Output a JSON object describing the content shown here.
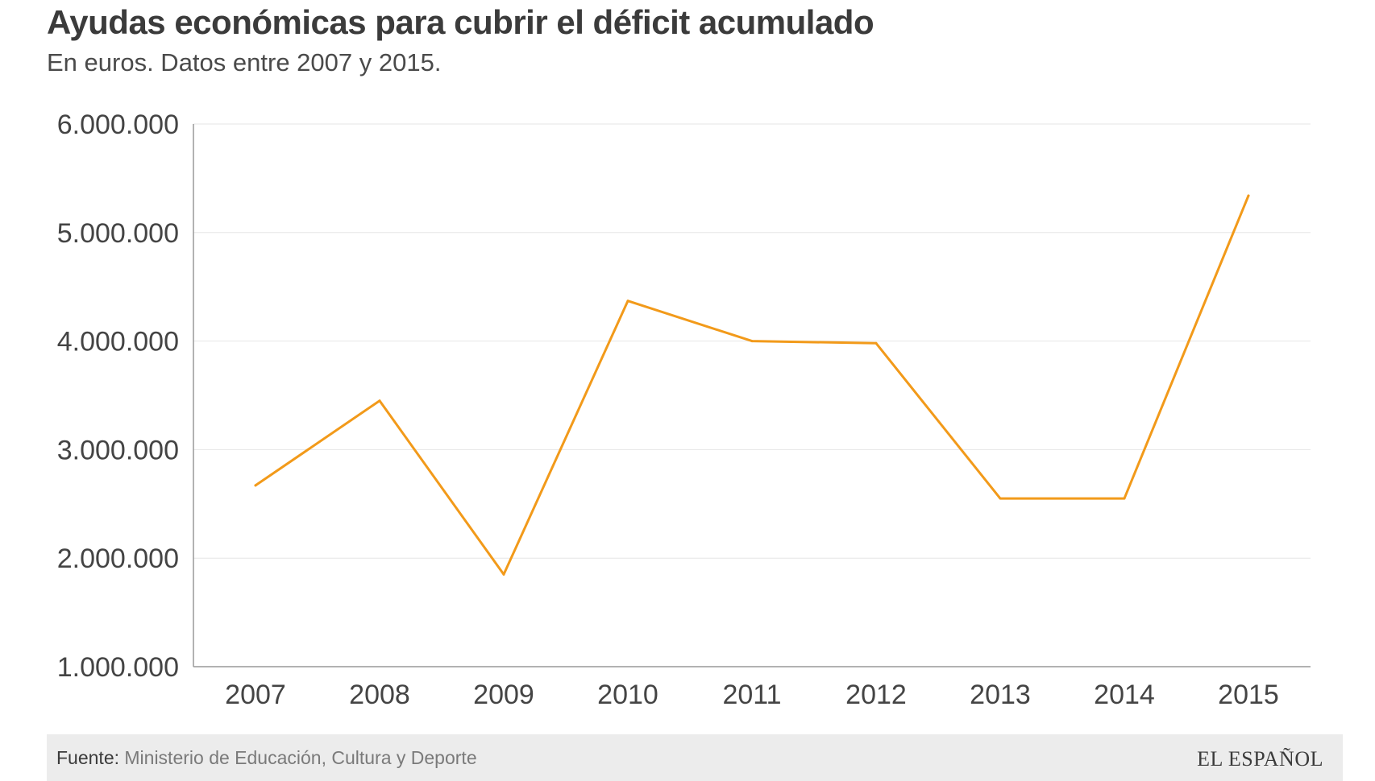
{
  "header": {
    "title": "Ayudas económicas para cubrir el déficit acumulado",
    "subtitle": "En euros. Datos entre 2007 y 2015."
  },
  "footer": {
    "source_label": "Fuente:",
    "source_text": "Ministerio de Educación, Cultura y Deporte",
    "brand": "EL ESPAÑOL"
  },
  "colors": {
    "line": "#f29a1a",
    "grid": "#e6e6e6",
    "axis": "#999999",
    "tick_text": "#444444",
    "footer_bg": "#ececec"
  },
  "chart_data": {
    "type": "line",
    "categories": [
      "2007",
      "2008",
      "2009",
      "2010",
      "2011",
      "2012",
      "2013",
      "2014",
      "2015"
    ],
    "series": [
      {
        "values": [
          2670000,
          3450000,
          1850000,
          4370000,
          4000000,
          3980000,
          2550000,
          2550000,
          5340000
        ]
      }
    ],
    "ylim": [
      1000000,
      6000000
    ],
    "yticks": [
      1000000,
      2000000,
      3000000,
      4000000,
      5000000,
      6000000
    ],
    "ytick_labels": [
      "1.000.000",
      "2.000.000",
      "3.000.000",
      "4.000.000",
      "5.000.000",
      "6.000.000"
    ],
    "grid": true,
    "legend": "none"
  }
}
